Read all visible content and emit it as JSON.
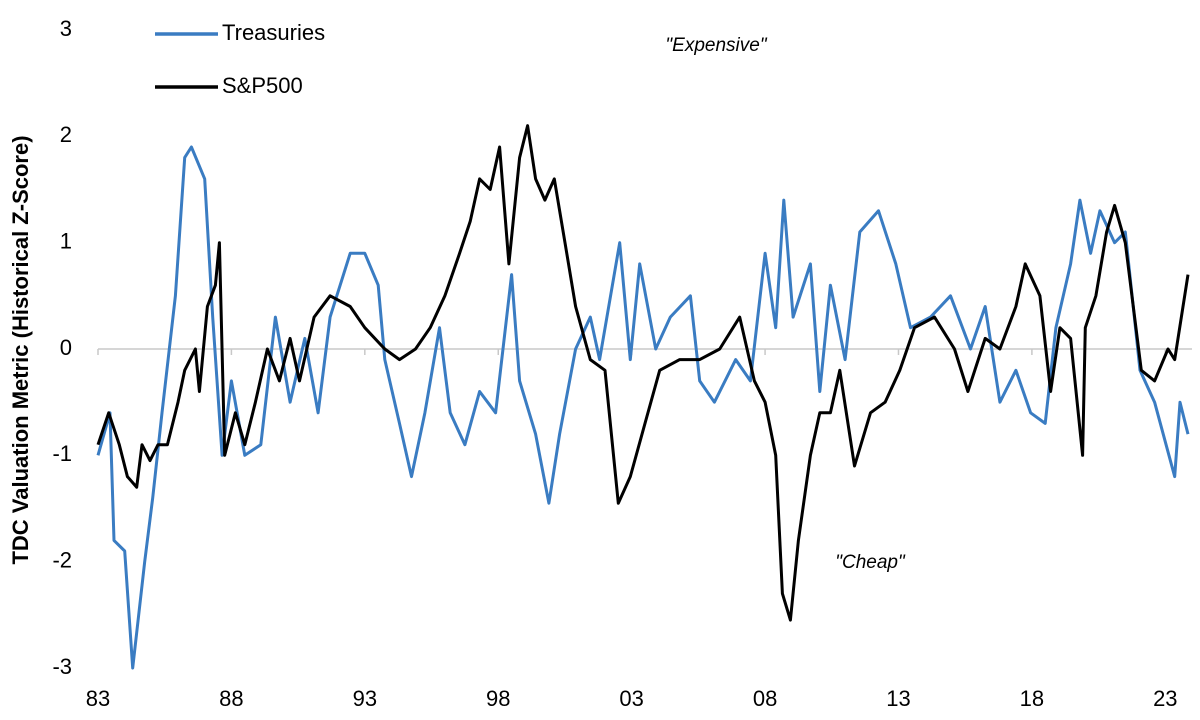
{
  "chart_data": {
    "type": "line",
    "y_label": "TDC Valuation Metric (Historical Z-Score)",
    "annotations": [
      "\"Expensive\"",
      "\"Cheap\""
    ],
    "xlim": [
      1983,
      2024
    ],
    "xticks": [
      {
        "value": 1983,
        "label": "83"
      },
      {
        "value": 1988,
        "label": "88"
      },
      {
        "value": 1993,
        "label": "93"
      },
      {
        "value": 1998,
        "label": "98"
      },
      {
        "value": 2003,
        "label": "03"
      },
      {
        "value": 2008,
        "label": "08"
      },
      {
        "value": 2013,
        "label": "13"
      },
      {
        "value": 2018,
        "label": "18"
      },
      {
        "value": 2023,
        "label": "23"
      }
    ],
    "ylim": [
      -3,
      3
    ],
    "yticks": [
      -3,
      -2,
      -1,
      0,
      1,
      2,
      3
    ],
    "grid": false,
    "legend": "upper left",
    "series": [
      {
        "name": "Treasuries",
        "color": "#3a7cc2",
        "x": [
          1983,
          1983.45,
          1983.6,
          1984,
          1984.3,
          1984.75,
          1985.05,
          1985.4,
          1985.9,
          1986.25,
          1986.5,
          1987,
          1987.3,
          1987.65,
          1988,
          1988.5,
          1989.1,
          1989.65,
          1990.2,
          1990.75,
          1991.25,
          1991.7,
          1992.45,
          1993,
          1993.5,
          1993.75,
          1994.3,
          1994.75,
          1995.25,
          1995.8,
          1996.2,
          1996.75,
          1997.3,
          1997.9,
          1998.5,
          1998.8,
          1999.4,
          1999.9,
          2000.3,
          2000.9,
          2001.45,
          2001.8,
          2002.55,
          2002.95,
          2003.3,
          2003.9,
          2004.45,
          2005.2,
          2005.55,
          2006.1,
          2006.9,
          2007.45,
          2008,
          2008.4,
          2008.7,
          2009.05,
          2009.7,
          2010.05,
          2010.45,
          2011,
          2011.55,
          2012.25,
          2012.9,
          2013.45,
          2014.2,
          2014.95,
          2015.7,
          2016.25,
          2016.8,
          2017.4,
          2017.95,
          2018.5,
          2018.9,
          2019.45,
          2019.8,
          2020.2,
          2020.55,
          2021.1,
          2021.5,
          2022.05,
          2022.6,
          2023.35,
          2023.55,
          2023.85
        ],
        "values": [
          -1.0,
          -0.6,
          -1.8,
          -1.9,
          -3.0,
          -2.0,
          -1.4,
          -0.6,
          0.5,
          1.8,
          1.9,
          1.6,
          0.3,
          -1.0,
          -0.3,
          -1.0,
          -0.9,
          0.3,
          -0.5,
          0.1,
          -0.6,
          0.3,
          0.9,
          0.9,
          0.6,
          -0.1,
          -0.7,
          -1.2,
          -0.6,
          0.2,
          -0.6,
          -0.9,
          -0.4,
          -0.6,
          0.7,
          -0.3,
          -0.8,
          -1.45,
          -0.8,
          0.0,
          0.3,
          -0.1,
          1.0,
          -0.1,
          0.8,
          0.0,
          0.3,
          0.5,
          -0.3,
          -0.5,
          -0.1,
          -0.3,
          0.9,
          0.2,
          1.4,
          0.3,
          0.8,
          -0.4,
          0.6,
          -0.1,
          1.1,
          1.3,
          0.8,
          0.2,
          0.3,
          0.5,
          0.0,
          0.4,
          -0.5,
          -0.2,
          -0.6,
          -0.7,
          0.2,
          0.8,
          1.4,
          0.9,
          1.3,
          1.0,
          1.1,
          -0.2,
          -0.5,
          -1.2,
          -0.5,
          -0.8
        ]
      },
      {
        "name": "S&P500",
        "color": "#000000",
        "x": [
          1983,
          1983.4,
          1983.8,
          1984.1,
          1984.45,
          1984.65,
          1984.95,
          1985.25,
          1985.6,
          1986,
          1986.25,
          1986.65,
          1986.8,
          1987.1,
          1987.4,
          1987.55,
          1987.75,
          1988.15,
          1988.5,
          1988.9,
          1989.35,
          1989.8,
          1990.2,
          1990.55,
          1991.1,
          1991.7,
          1992.45,
          1993,
          1993.75,
          1994.3,
          1994.9,
          1995.45,
          1996,
          1996.55,
          1996.95,
          1997.3,
          1997.7,
          1998.05,
          1998.4,
          1998.8,
          1999.1,
          1999.4,
          1999.75,
          2000.1,
          2000.5,
          2000.9,
          2001.45,
          2002,
          2002.5,
          2002.95,
          2003.5,
          2004.05,
          2004.8,
          2005.55,
          2006.3,
          2007.05,
          2007.6,
          2008,
          2008.4,
          2008.65,
          2008.95,
          2009.25,
          2009.7,
          2010.05,
          2010.45,
          2010.8,
          2011.35,
          2011.95,
          2012.5,
          2013.05,
          2013.6,
          2014.35,
          2015.1,
          2015.6,
          2016.25,
          2016.8,
          2017.4,
          2017.75,
          2018.3,
          2018.7,
          2019.05,
          2019.45,
          2019.9,
          2020,
          2020.4,
          2020.8,
          2021.1,
          2021.5,
          2021.85,
          2022.1,
          2022.6,
          2023.1,
          2023.35,
          2023.85
        ],
        "values": [
          -0.9,
          -0.6,
          -0.9,
          -1.2,
          -1.3,
          -0.9,
          -1.05,
          -0.9,
          -0.9,
          -0.5,
          -0.2,
          0.0,
          -0.4,
          0.4,
          0.6,
          1.0,
          -1.0,
          -0.6,
          -0.9,
          -0.5,
          0.0,
          -0.3,
          0.1,
          -0.3,
          0.3,
          0.5,
          0.4,
          0.2,
          0.0,
          -0.1,
          0.0,
          0.2,
          0.5,
          0.9,
          1.2,
          1.6,
          1.5,
          1.9,
          0.8,
          1.8,
          2.1,
          1.6,
          1.4,
          1.6,
          1.0,
          0.4,
          -0.1,
          -0.2,
          -1.45,
          -1.2,
          -0.7,
          -0.2,
          -0.1,
          -0.1,
          0.0,
          0.3,
          -0.3,
          -0.5,
          -1.0,
          -2.3,
          -2.55,
          -1.8,
          -1.0,
          -0.6,
          -0.6,
          -0.2,
          -1.1,
          -0.6,
          -0.5,
          -0.2,
          0.2,
          0.3,
          0.0,
          -0.4,
          0.1,
          0.0,
          0.4,
          0.8,
          0.5,
          -0.4,
          0.2,
          0.1,
          -1.0,
          0.2,
          0.5,
          1.1,
          1.35,
          1.0,
          0.3,
          -0.2,
          -0.3,
          0.0,
          -0.1,
          0.7
        ]
      }
    ]
  }
}
